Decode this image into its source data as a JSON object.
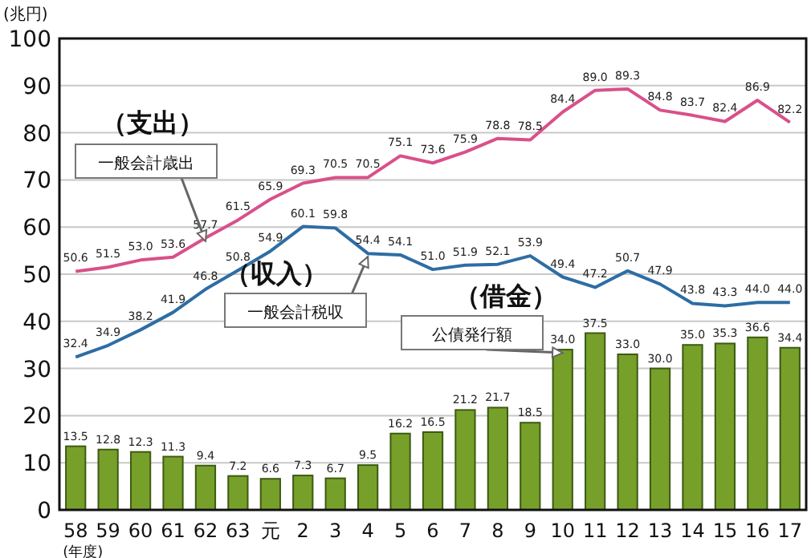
{
  "chart_data": {
    "type": "bar",
    "ylabel": "(兆円)",
    "xlabel": "(年度)",
    "categories": [
      "58",
      "59",
      "60",
      "61",
      "62",
      "63",
      "元",
      "2",
      "3",
      "4",
      "5",
      "6",
      "7",
      "8",
      "9",
      "10",
      "11",
      "12",
      "13",
      "14",
      "15",
      "16",
      "17"
    ],
    "series": [
      {
        "color": "#77a02a",
        "values": [
          13.5,
          12.8,
          12.3,
          11.3,
          9.4,
          7.2,
          6.6,
          7.3,
          6.7,
          9.5,
          16.2,
          16.5,
          21.2,
          21.7,
          18.5,
          34.0,
          37.5,
          33.0,
          30.0,
          35.0,
          35.3,
          36.6,
          34.4
        ],
        "value_labels": [
          "13.5",
          "12.8",
          "12.3",
          "11.3",
          "9.4",
          "7.2",
          "6.6",
          "7.3",
          "6.7",
          "9.5",
          "16.2",
          "16.5",
          "21.2",
          "21.7",
          "18.5",
          "34.0",
          "37.5",
          "33.0",
          "30.0",
          "35.0",
          "35.3",
          "36.6",
          "34.4"
        ]
      },
      {
        "type": "line",
        "color": "#d9508a",
        "values": [
          50.6,
          51.5,
          53.0,
          53.6,
          57.7,
          61.5,
          65.9,
          69.3,
          70.5,
          70.5,
          75.1,
          73.6,
          75.9,
          78.8,
          78.5,
          84.4,
          89.0,
          89.3,
          84.8,
          83.7,
          82.4,
          86.9,
          82.2
        ],
        "value_labels": [
          "50.6",
          "51.5",
          "53.0",
          "53.6",
          "57.7",
          "61.5",
          "65.9",
          "69.3",
          "70.5",
          "70.5",
          "75.1",
          "73.6",
          "75.9",
          "78.8",
          "78.5",
          "84.4",
          "89.0",
          "89.3",
          "84.8",
          "83.7",
          "82.4",
          "86.9",
          "82.2"
        ]
      },
      {
        "type": "line",
        "color": "#2e6da4",
        "values": [
          32.4,
          34.9,
          38.2,
          41.9,
          46.8,
          50.8,
          54.9,
          60.1,
          59.8,
          54.4,
          54.1,
          51.0,
          51.9,
          52.1,
          53.9,
          49.4,
          47.2,
          50.7,
          47.9,
          43.8,
          43.3,
          44.0,
          44.0
        ],
        "value_labels": [
          "32.4",
          "34.9",
          "38.2",
          "41.9",
          "46.8",
          "50.8",
          "54.9",
          "60.1",
          "59.8",
          "54.4",
          "54.1",
          "51.0",
          "51.9",
          "52.1",
          "53.9",
          "49.4",
          "47.2",
          "50.7",
          "47.9",
          "43.8",
          "43.3",
          "44.0",
          "44.0"
        ]
      }
    ],
    "annotations": [
      "（支出）",
      {
        "text": "一般会計歳出",
        "x": "62",
        "y": 57.7
      },
      "（収入）",
      {
        "text": "一般会計税収",
        "x": "4",
        "y": 54.4
      },
      "（借金）",
      {
        "text": "公債発行額",
        "x": "10",
        "y": 34.0
      }
    ],
    "ylim": [
      0,
      100
    ],
    "yticks": [
      0,
      10,
      20,
      30,
      40,
      50,
      60,
      70,
      80,
      90,
      100
    ],
    "grid": "y",
    "marker": "none",
    "line_style": "solid"
  }
}
